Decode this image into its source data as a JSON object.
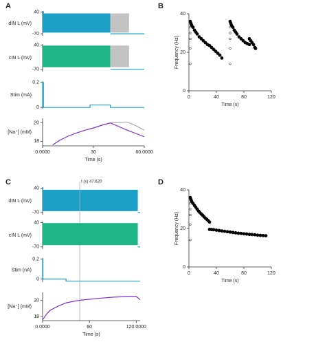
{
  "chart_data": [
    {
      "type": "trace",
      "panel": "A",
      "ylabel": "dIN L (mV)",
      "xlim": [
        0,
        60
      ],
      "ylim": [
        -80,
        45
      ],
      "yticks": [
        40,
        -70
      ],
      "series": [
        {
          "color": "#1b9fc6",
          "x": [
            0,
            40
          ],
          "values": [
            33,
            33
          ],
          "lower": [
            -64,
            -64
          ]
        },
        {
          "color": "#c3c3c3",
          "x": [
            40,
            51
          ],
          "values": [
            33,
            33
          ],
          "lower": [
            -64,
            -64
          ]
        },
        {
          "color": "#1b9fc6",
          "x": [
            0.5,
            0.5
          ],
          "values": [
            44,
            -64
          ]
        },
        {
          "color": "#1b9fc6",
          "x": [
            40,
            60
          ],
          "values": [
            -70,
            -70
          ]
        }
      ]
    },
    {
      "type": "trace",
      "ylabel": "cIN L (mV)",
      "xlim": [
        0,
        60
      ],
      "ylim": [
        -80,
        45
      ],
      "yticks": [
        40,
        -70
      ],
      "series": [
        {
          "color": "#1fb687",
          "x": [
            0,
            40
          ],
          "values": [
            38,
            38
          ],
          "lower": [
            -60,
            -60
          ]
        },
        {
          "color": "#c3c3c3",
          "x": [
            40,
            51
          ],
          "values": [
            38,
            38
          ],
          "lower": [
            -60,
            -60
          ]
        },
        {
          "color": "#1b9fc6",
          "x": [
            40,
            60
          ],
          "values": [
            -70,
            -70
          ]
        }
      ]
    },
    {
      "type": "trace",
      "ylabel": "Stim (mA)",
      "xlim": [
        0,
        60
      ],
      "ylim": [
        -0.01,
        0.21
      ],
      "yticks": [
        {
          "value": 0.2,
          "label": "0.2"
        },
        0
      ],
      "series": [
        {
          "color": "#1b9fc6",
          "x": [
            0,
            0,
            0.5,
            0.5,
            28,
            28,
            40,
            40,
            60
          ],
          "values": [
            0,
            0.2,
            0.2,
            0,
            0,
            0.02,
            0.02,
            0,
            0
          ]
        }
      ]
    },
    {
      "type": "trace",
      "ylabel": "[Na⁺] (mM)",
      "xlabel": "Time (s)",
      "xlim": [
        0,
        60
      ],
      "ylim": [
        17.5,
        20.5
      ],
      "yticks": [
        20,
        18
      ],
      "xticks": [
        {
          "value": 0,
          "label": "0.0000"
        },
        30,
        {
          "value": 60,
          "label": "60.0000"
        }
      ],
      "series": [
        {
          "color": "#aaaaaa",
          "x": [
            40,
            45,
            50,
            55,
            60
          ],
          "values": [
            20,
            20.05,
            20.1,
            19.7,
            19.2
          ]
        },
        {
          "color": "#7b2fd0",
          "x": [
            6,
            10,
            15,
            20,
            25,
            30,
            35,
            40,
            45,
            50,
            55,
            60
          ],
          "values": [
            17.6,
            18.1,
            18.55,
            18.9,
            19.2,
            19.45,
            19.75,
            20,
            19.6,
            19.2,
            18.85,
            18.5
          ]
        }
      ]
    },
    {
      "type": "scatter",
      "panel": "B",
      "ylabel": "Frequency (Hz)",
      "xlabel": "Time (s)",
      "xlim": [
        0,
        120
      ],
      "ylim": [
        0,
        40
      ],
      "xticks": [
        0,
        40,
        80,
        120
      ],
      "yticks": [
        0,
        20,
        40
      ],
      "series": [
        {
          "color": "#000000",
          "x": [
            2,
            3,
            4,
            6,
            8,
            10,
            12,
            15,
            18,
            21,
            24,
            27,
            30,
            33,
            36,
            39,
            42,
            45,
            48,
            60,
            61,
            62,
            64,
            66,
            68,
            70,
            73,
            76,
            79,
            82,
            85,
            88,
            88,
            90,
            92,
            94,
            96,
            97
          ],
          "values": [
            36,
            35,
            34,
            33,
            31.5,
            30.5,
            29.5,
            28,
            27,
            26,
            25,
            24,
            23.5,
            22.5,
            21.5,
            20.5,
            19.5,
            18.5,
            17,
            36,
            35,
            34,
            33,
            31.5,
            30.5,
            29.5,
            28,
            27,
            26,
            25,
            24.5,
            24,
            27,
            26,
            25,
            24,
            22.5,
            22
          ]
        },
        {
          "color": "#444444",
          "marker": "open",
          "x": [
            2,
            2,
            2,
            2,
            2,
            60,
            60,
            60,
            60,
            60
          ],
          "values": [
            33,
            30,
            27,
            22,
            14,
            33,
            30,
            27,
            22,
            14
          ]
        }
      ]
    },
    {
      "type": "trace",
      "panel": "C",
      "ylabel": "dIN L (mV)",
      "annotation": "t (s) 47.620",
      "cursor_x": 47.62,
      "xlim": [
        0,
        125
      ],
      "ylim": [
        -80,
        45
      ],
      "yticks": [
        40,
        -70
      ],
      "series": [
        {
          "color": "#1b9fc6",
          "x": [
            0,
            122
          ],
          "values": [
            33,
            33
          ],
          "lower": [
            -64,
            -64
          ]
        },
        {
          "color": "#1b9fc6",
          "x": [
            0.5,
            0.5
          ],
          "values": [
            44,
            -64
          ]
        },
        {
          "color": "#1b9fc6",
          "x": [
            122,
            125
          ],
          "values": [
            -70,
            -70
          ]
        }
      ]
    },
    {
      "type": "trace",
      "ylabel": "cIN L (mV)",
      "xlim": [
        0,
        125
      ],
      "ylim": [
        -80,
        45
      ],
      "yticks": [
        40,
        -70
      ],
      "series": [
        {
          "color": "#1fb687",
          "x": [
            0,
            122
          ],
          "values": [
            38,
            38
          ],
          "lower": [
            -62,
            -62
          ]
        },
        {
          "color": "#1b9fc6",
          "x": [
            122,
            125
          ],
          "values": [
            -70,
            -70
          ]
        }
      ]
    },
    {
      "type": "trace",
      "ylabel": "Stim (nA)",
      "xlim": [
        0,
        125
      ],
      "ylim": [
        -0.03,
        0.21
      ],
      "yticks": [
        {
          "value": 0.2,
          "label": "0.2"
        },
        0
      ],
      "series": [
        {
          "color": "#1b9fc6",
          "x": [
            0,
            0,
            0.5,
            0.5,
            30,
            30,
            125
          ],
          "values": [
            0,
            0.2,
            0.2,
            0,
            0,
            -0.02,
            -0.02
          ]
        }
      ]
    },
    {
      "type": "trace",
      "ylabel": "[Na⁺] (mM)",
      "xlabel": "Time (s)",
      "xlim": [
        0,
        125
      ],
      "ylim": [
        17.5,
        21
      ],
      "yticks": [
        20,
        18
      ],
      "xticks": [
        {
          "value": 0,
          "label": "0.0000"
        },
        60,
        {
          "value": 120,
          "label": "120.0000"
        }
      ],
      "series": [
        {
          "color": "#7b2fd0",
          "x": [
            0,
            5,
            10,
            20,
            30,
            40,
            50,
            70,
            90,
            110,
            120,
            125
          ],
          "values": [
            17.6,
            18.3,
            18.8,
            19.3,
            19.7,
            19.9,
            20.05,
            20.25,
            20.4,
            20.5,
            20.5,
            20.1
          ]
        }
      ]
    },
    {
      "type": "scatter",
      "panel": "D",
      "ylabel": "Frequency (Hz)",
      "xlabel": "Time (s)",
      "xlim": [
        0,
        120
      ],
      "ylim": [
        0,
        40
      ],
      "xticks": [
        0,
        40,
        80,
        120
      ],
      "yticks": [
        0,
        20,
        40
      ],
      "series": [
        {
          "color": "#000000",
          "x": [
            2,
            3,
            4,
            6,
            8,
            10,
            12,
            14,
            16,
            18,
            20,
            22,
            24,
            26,
            28,
            30,
            30,
            33,
            36,
            40,
            44,
            48,
            52,
            56,
            60,
            64,
            68,
            72,
            76,
            80,
            84,
            88,
            92,
            96,
            100,
            104,
            108,
            112
          ],
          "values": [
            36,
            35,
            34,
            33,
            32,
            31,
            30,
            29,
            28.2,
            27.5,
            26.8,
            26,
            25.3,
            24.7,
            24,
            23.3,
            19.5,
            19.4,
            19.3,
            19.1,
            18.9,
            18.7,
            18.5,
            18.3,
            18.1,
            17.9,
            17.7,
            17.5,
            17.4,
            17.2,
            17.1,
            16.9,
            16.8,
            16.7,
            16.5,
            16.4,
            16.3,
            16.2
          ]
        },
        {
          "color": "#444444",
          "marker": "open",
          "x": [
            2,
            2,
            2,
            2,
            2
          ],
          "values": [
            33,
            30,
            27,
            22,
            14
          ]
        }
      ]
    }
  ]
}
